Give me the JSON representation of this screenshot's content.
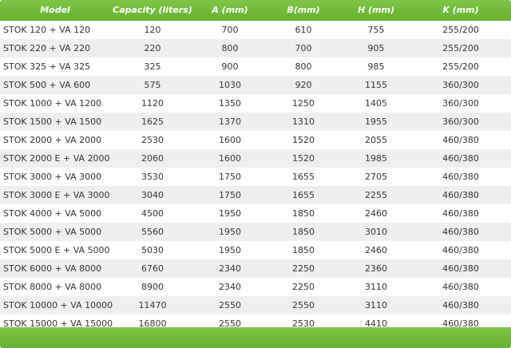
{
  "table": {
    "columns": [
      "Model",
      "Capacity (liters)",
      "A (mm)",
      "B(mm)",
      "H (mm)",
      "K (mm)"
    ],
    "rows": [
      [
        "STOK 120 + VA 120",
        "120",
        "700",
        "610",
        "755",
        "255/200"
      ],
      [
        "STOK 220 + VA 220",
        "220",
        "800",
        "700",
        "905",
        "255/200"
      ],
      [
        "STOK 325 + VA 325",
        "325",
        "900",
        "800",
        "985",
        "255/200"
      ],
      [
        "STOK 500 + VA 600",
        "575",
        "1030",
        "920",
        "1155",
        "360/300"
      ],
      [
        "STOK 1000 + VA 1200",
        "1120",
        "1350",
        "1250",
        "1405",
        "360/300"
      ],
      [
        "STOK 1500 + VA 1500",
        "1625",
        "1370",
        "1310",
        "1955",
        "360/300"
      ],
      [
        "STOK 2000 + VA 2000",
        "2530",
        "1600",
        "1520",
        "2055",
        "460/380"
      ],
      [
        "STOK 2000 E + VA 2000",
        "2060",
        "1600",
        "1520",
        "1985",
        "460/380"
      ],
      [
        "STOK 3000 + VA 3000",
        "3530",
        "1750",
        "1655",
        "2705",
        "460/380"
      ],
      [
        "STOK 3000 E + VA 3000",
        "3040",
        "1750",
        "1655",
        "2255",
        "460/380"
      ],
      [
        "STOK 4000 + VA 5000",
        "4500",
        "1950",
        "1850",
        "2460",
        "460/380"
      ],
      [
        "STOK 5000 + VA 5000",
        "5560",
        "1950",
        "1850",
        "3010",
        "460/380"
      ],
      [
        "STOK 5000 E + VA 5000",
        "5030",
        "1950",
        "1850",
        "2460",
        "460/380"
      ],
      [
        "STOK 6000 + VA 8000",
        "6760",
        "2340",
        "2250",
        "2360",
        "460/380"
      ],
      [
        "STOK 8000 + VA 8000",
        "8900",
        "2340",
        "2250",
        "3110",
        "460/380"
      ],
      [
        "STOK 10000 + VA 10000",
        "11470",
        "2550",
        "2550",
        "3110",
        "460/380"
      ],
      [
        "STOK 15000 + VA 15000",
        "16800",
        "2550",
        "2530",
        "4410",
        "460/380"
      ]
    ]
  },
  "colors": {
    "header_green": "#6cb535",
    "row_alt": "#efefef",
    "text": "#333333"
  }
}
